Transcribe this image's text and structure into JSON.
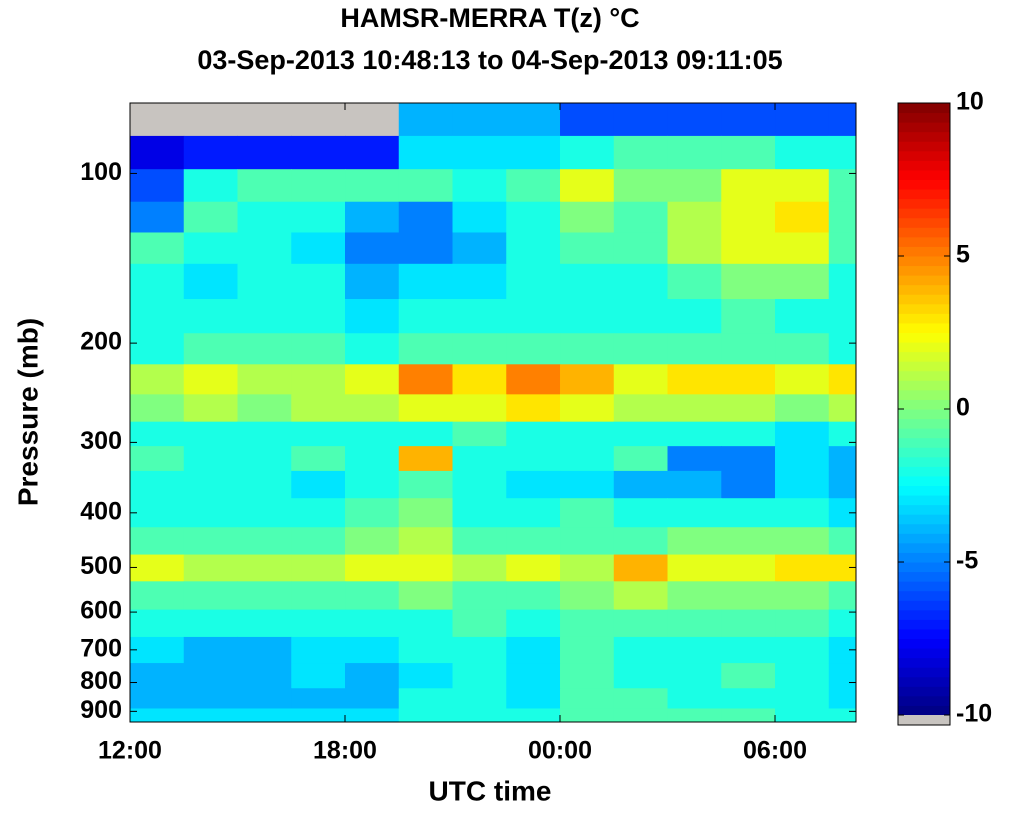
{
  "chart_data": {
    "type": "heatmap",
    "title": "HAMSR-MERRA T(z) °C",
    "subtitle": "03-Sep-2013 10:48:13 to 04-Sep-2013 09:11:05",
    "x_label": "UTC time",
    "y_label": "Pressure (mb)",
    "x": [
      12.75,
      14.25,
      15.75,
      17.25,
      18.75,
      20.25,
      21.75,
      23.25,
      24.75,
      26.25,
      27.75,
      29.25,
      30.75,
      32.25
    ],
    "y": [
      80,
      92,
      105,
      120,
      135,
      155,
      180,
      205,
      232,
      262,
      290,
      320,
      355,
      400,
      450,
      500,
      560,
      630,
      700,
      780,
      860,
      920
    ],
    "values": [
      [
        null,
        null,
        null,
        null,
        null,
        -4,
        -4,
        -4,
        -6,
        -6,
        -6,
        -6,
        -6,
        -6
      ],
      [
        -8,
        -7,
        -7,
        -7,
        -7,
        -3,
        -3,
        -3,
        -2,
        -1,
        -1,
        -1,
        -2,
        -2
      ],
      [
        -6,
        -2,
        -1,
        -1,
        -1,
        -1,
        -2,
        -1,
        2,
        0,
        0,
        2,
        2,
        -1
      ],
      [
        -5,
        -1,
        -2,
        -2,
        -4,
        -5,
        -3,
        -2,
        0,
        -1,
        1,
        2,
        3,
        -1
      ],
      [
        -1,
        -2,
        -2,
        -3,
        -5,
        -5,
        -4,
        -2,
        -1,
        -1,
        1,
        2,
        2,
        -1
      ],
      [
        -2,
        -3,
        -2,
        -2,
        -4,
        -3,
        -3,
        -2,
        -2,
        -2,
        -1,
        0,
        0,
        -2
      ],
      [
        -2,
        -2,
        -2,
        -2,
        -3,
        -2,
        -2,
        -2,
        -2,
        -2,
        -2,
        -1,
        -2,
        -2
      ],
      [
        -2,
        -1,
        -1,
        -1,
        -2,
        -1,
        -1,
        -1,
        -1,
        -1,
        -1,
        -1,
        -1,
        -2
      ],
      [
        1,
        2,
        1,
        1,
        2,
        5,
        3,
        5,
        4,
        2,
        3,
        3,
        2,
        3
      ],
      [
        0,
        1,
        0,
        1,
        1,
        2,
        2,
        3,
        2,
        1,
        1,
        1,
        0,
        1
      ],
      [
        -2,
        -2,
        -2,
        -2,
        -2,
        -2,
        -1,
        -2,
        -2,
        -2,
        -2,
        -2,
        -3,
        -2
      ],
      [
        -1,
        -2,
        -2,
        -1,
        -2,
        4,
        -2,
        -2,
        -2,
        -1,
        -5,
        -5,
        -3,
        -4
      ],
      [
        -2,
        -2,
        -2,
        -3,
        -2,
        -1,
        -2,
        -3,
        -3,
        -4,
        -4,
        -5,
        -3,
        -4
      ],
      [
        -2,
        -2,
        -2,
        -2,
        -1,
        0,
        -2,
        -2,
        -1,
        -2,
        -2,
        -2,
        -2,
        -3
      ],
      [
        -1,
        -1,
        -1,
        -1,
        0,
        1,
        -1,
        -1,
        -1,
        -1,
        0,
        0,
        0,
        -1
      ],
      [
        2,
        1,
        1,
        1,
        2,
        2,
        1,
        2,
        1,
        4,
        2,
        2,
        3,
        3
      ],
      [
        -1,
        -1,
        -1,
        -1,
        -1,
        0,
        -1,
        -1,
        0,
        1,
        0,
        0,
        0,
        -1
      ],
      [
        -2,
        -2,
        -2,
        -2,
        -2,
        -2,
        -1,
        -2,
        -1,
        -1,
        -1,
        -1,
        -1,
        -2
      ],
      [
        -3,
        -4,
        -4,
        -3,
        -3,
        -2,
        -2,
        -3,
        -1,
        -2,
        -2,
        -2,
        -2,
        -3
      ],
      [
        -4,
        -4,
        -4,
        -3,
        -4,
        -3,
        -2,
        -3,
        -1,
        -2,
        -2,
        -1,
        -2,
        -3
      ],
      [
        -4,
        -4,
        -4,
        -4,
        -4,
        -2,
        -2,
        -3,
        -1,
        -1,
        -2,
        -2,
        -2,
        -3
      ],
      [
        -3,
        -3,
        -3,
        -3,
        -3,
        -2,
        -2,
        -2,
        -1,
        -1,
        -1,
        -1,
        -2,
        -2
      ]
    ],
    "xlim": [
      12,
      32.26
    ],
    "xticks": [
      {
        "value": 12,
        "label": "12:00"
      },
      {
        "value": 18,
        "label": "18:00"
      },
      {
        "value": 24,
        "label": "00:00"
      },
      {
        "value": 30,
        "label": "06:00"
      }
    ],
    "ylim": [
      75,
      940
    ],
    "yticks": [
      100,
      200,
      300,
      400,
      500,
      600,
      700,
      800,
      900
    ],
    "y_scale": "log",
    "y_inverted": true,
    "colormap": "jet",
    "clim": [
      -10,
      10
    ],
    "cticks": [
      -10,
      -5,
      0,
      5,
      10
    ],
    "missing_color": "#c8c4c0"
  }
}
